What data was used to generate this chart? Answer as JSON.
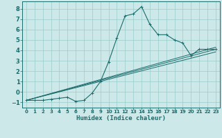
{
  "xlabel": "Humidex (Indice chaleur)",
  "bg_color": "#cce8e8",
  "grid_color": "#99cccc",
  "line_color": "#1a6b6b",
  "xlim": [
    -0.5,
    23.5
  ],
  "ylim": [
    -1.5,
    8.7
  ],
  "xticks": [
    0,
    1,
    2,
    3,
    4,
    5,
    6,
    7,
    8,
    9,
    10,
    11,
    12,
    13,
    14,
    15,
    16,
    17,
    18,
    19,
    20,
    21,
    22,
    23
  ],
  "yticks": [
    -1,
    0,
    1,
    2,
    3,
    4,
    5,
    6,
    7,
    8
  ],
  "main_x": [
    0,
    1,
    2,
    3,
    4,
    5,
    6,
    7,
    8,
    9,
    10,
    11,
    12,
    13,
    14,
    15,
    16,
    17,
    18,
    19,
    20,
    21,
    22,
    23
  ],
  "main_y": [
    -0.8,
    -0.8,
    -0.8,
    -0.7,
    -0.6,
    -0.5,
    -0.9,
    -0.8,
    -0.1,
    1.0,
    2.9,
    5.2,
    7.3,
    7.5,
    8.2,
    6.5,
    5.5,
    5.5,
    5.0,
    4.7,
    3.5,
    4.1,
    4.1,
    4.1
  ],
  "ref_lines": [
    {
      "x": [
        0,
        23
      ],
      "y": [
        -0.8,
        4.3
      ]
    },
    {
      "x": [
        0,
        23
      ],
      "y": [
        -0.8,
        4.1
      ]
    },
    {
      "x": [
        0,
        23
      ],
      "y": [
        -0.8,
        3.85
      ]
    }
  ]
}
